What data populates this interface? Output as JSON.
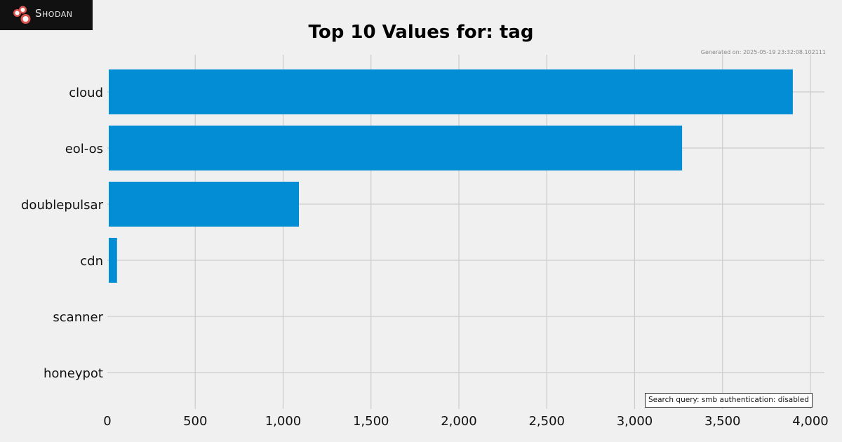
{
  "brand": {
    "logo_text": "Shodan",
    "icon": "shodan-logo-icon",
    "background_color": "#111111",
    "icon_color": "#d9534f"
  },
  "chart_data": {
    "type": "bar",
    "orientation": "horizontal",
    "title": "Top 10 Values for: tag",
    "generated_on": "Generated on: 2025-05-19 23:32:08.102111",
    "categories": [
      "cloud",
      "eol-os",
      "doublepulsar",
      "cdn",
      "scanner",
      "honeypot"
    ],
    "values": [
      3900,
      3270,
      1090,
      55,
      1,
      1
    ],
    "xlim": [
      0,
      4080
    ],
    "xticks": [
      0,
      500,
      1000,
      1500,
      2000,
      2500,
      3000,
      3500,
      4000
    ],
    "xtick_labels": [
      "0",
      "500",
      "1,000",
      "1,500",
      "2,000",
      "2,500",
      "3,000",
      "3,500",
      "4,000"
    ],
    "xlabel": "",
    "ylabel": "",
    "grid": true,
    "bar_color": "#038dd5",
    "background_color": "#f0f0f0",
    "grid_color": "#cbcbcb"
  },
  "search_query": "Search query: smb authentication: disabled"
}
